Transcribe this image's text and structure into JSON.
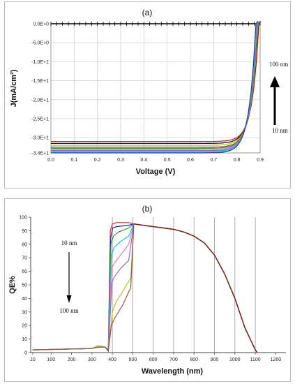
{
  "chart_data": [
    {
      "type": "line",
      "title": "(a)",
      "xlabel": "Voltage (V)",
      "ylabel": "J(mA/cm²)",
      "xlim": [
        0,
        0.9
      ],
      "ylim": [
        -34,
        0
      ],
      "xticks": [
        "0.0",
        "0.1",
        "0.2",
        "0.3",
        "0.4",
        "0.5",
        "0.6",
        "0.7",
        "0.8",
        "0.9"
      ],
      "yticks": [
        "0.0E+0",
        "-5.0E+0",
        "-1.0E+1",
        "-1.5E+1",
        "-2.0E+1",
        "-2.5E+1",
        "-3.0E+1",
        "-3.4E+1"
      ],
      "ytick_values": [
        0,
        -5,
        -10,
        -15,
        -20,
        -25,
        -30,
        -34
      ],
      "grid": true,
      "annotations": {
        "top": "100 nm",
        "bottom": "10 nm"
      },
      "series": [
        {
          "color": "#d62728",
          "jsc": -31.0,
          "voc": 0.895
        },
        {
          "color": "#1a1a1a",
          "jsc": -31.5,
          "voc": 0.893
        },
        {
          "color": "#bcbd22",
          "jsc": -32.0,
          "voc": 0.891
        },
        {
          "color": "#8c564b",
          "jsc": -32.5,
          "voc": 0.889
        },
        {
          "color": "#2ca02c",
          "jsc": -32.8,
          "voc": 0.887
        },
        {
          "color": "#e377c2",
          "jsc": -33.1,
          "voc": 0.886
        },
        {
          "color": "#9467bd",
          "jsc": -33.4,
          "voc": 0.885
        },
        {
          "color": "#17becf",
          "jsc": -33.6,
          "voc": 0.884
        },
        {
          "color": "#7fbfff",
          "jsc": -33.8,
          "voc": 0.883
        },
        {
          "color": "#1f3f9f",
          "jsc": -34.0,
          "voc": 0.882
        }
      ]
    },
    {
      "type": "line",
      "title": "(b)",
      "xlabel": "Wavelength (nm)",
      "ylabel": "QE%",
      "xlim": [
        0,
        1250
      ],
      "ylim": [
        0,
        100
      ],
      "xticks": [
        "10",
        "100",
        "200",
        "300",
        "400",
        "500",
        "600",
        "700",
        "800",
        "900",
        "1000",
        "1100",
        "1200"
      ],
      "xtick_values": [
        10,
        100,
        200,
        300,
        400,
        500,
        600,
        700,
        800,
        900,
        1000,
        1100,
        1200
      ],
      "yticks": [
        "0",
        "10",
        "20",
        "30",
        "40",
        "50",
        "60",
        "70",
        "80",
        "90",
        "100"
      ],
      "ytick_values": [
        0,
        10,
        20,
        30,
        40,
        50,
        60,
        70,
        80,
        90,
        100
      ],
      "grid": true,
      "annotations": {
        "top": "10 nm",
        "bottom": "100 nm"
      },
      "common_tail": {
        "x": [
          505,
          550,
          600,
          650,
          700,
          750,
          800,
          850,
          900,
          950,
          1000,
          1050,
          1100,
          1110
        ],
        "y": [
          95,
          94,
          93,
          92,
          91,
          89,
          86,
          81,
          72,
          58,
          40,
          18,
          2,
          0
        ]
      },
      "series": [
        {
          "color": "#d62728",
          "x": [
            10,
            300,
            330,
            365,
            380,
            390,
            400,
            420,
            480,
            505
          ],
          "y": [
            2,
            3,
            4,
            4,
            2,
            90,
            95,
            96,
            96,
            95
          ]
        },
        {
          "color": "#2020c0",
          "x": [
            10,
            300,
            330,
            365,
            380,
            392,
            402,
            420,
            480,
            505
          ],
          "y": [
            2,
            3,
            5,
            4,
            2,
            85,
            92,
            93,
            94,
            95
          ]
        },
        {
          "color": "#2ca02c",
          "x": [
            10,
            300,
            330,
            365,
            380,
            393,
            405,
            430,
            480,
            505
          ],
          "y": [
            2,
            3,
            5,
            4,
            2,
            80,
            86,
            89,
            92,
            95
          ]
        },
        {
          "color": "#17becf",
          "x": [
            10,
            300,
            330,
            365,
            380,
            395,
            410,
            440,
            480,
            505
          ],
          "y": [
            2,
            3,
            5,
            4,
            2,
            72,
            78,
            82,
            86,
            95
          ]
        },
        {
          "color": "#e377c2",
          "x": [
            10,
            300,
            330,
            365,
            380,
            396,
            410,
            440,
            480,
            505
          ],
          "y": [
            2,
            3,
            5,
            4,
            1,
            62,
            66,
            72,
            80,
            95
          ]
        },
        {
          "color": "#9467bd",
          "x": [
            10,
            300,
            330,
            365,
            380,
            398,
            410,
            440,
            480,
            505
          ],
          "y": [
            2,
            3,
            5,
            4,
            1,
            52,
            56,
            62,
            68,
            95
          ]
        },
        {
          "color": "#bcbd22",
          "x": [
            10,
            300,
            330,
            365,
            380,
            400,
            420,
            450,
            490,
            505
          ],
          "y": [
            2,
            3,
            5,
            4,
            1,
            30,
            38,
            45,
            55,
            95
          ]
        },
        {
          "color": "#8c564b",
          "x": [
            10,
            300,
            330,
            365,
            380,
            395,
            410,
            450,
            490,
            505
          ],
          "y": [
            2,
            3,
            4,
            4,
            1,
            20,
            25,
            35,
            48,
            95
          ]
        }
      ]
    }
  ]
}
